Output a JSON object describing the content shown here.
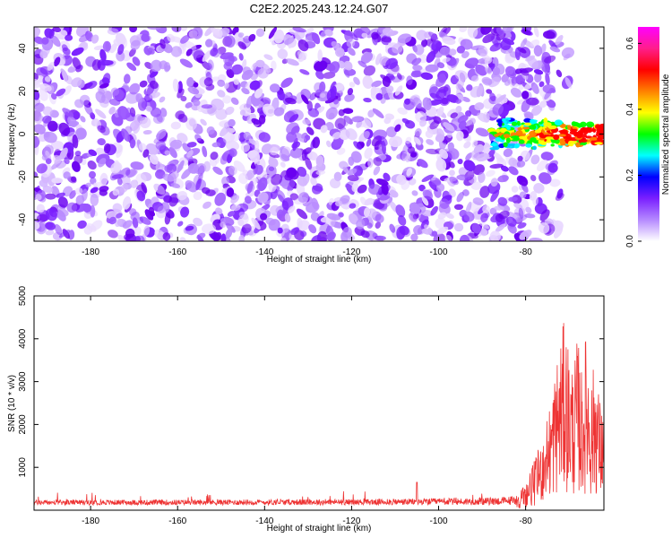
{
  "figure_title": "C2E2.2025.243.12.24.G07",
  "chart_data": [
    {
      "type": "heatmap",
      "xlabel": "Height of straight line (km)",
      "ylabel": "Frequency (Hz)",
      "xlim": [
        -193,
        -62
      ],
      "ylim": [
        -50,
        50
      ],
      "xticks": [
        -180,
        -160,
        -140,
        -120,
        -100,
        -80
      ],
      "yticks": [
        -40,
        -20,
        0,
        20,
        40
      ],
      "colorbar": {
        "label": "Normalized spectral amplitude",
        "range": [
          0.0,
          0.65
        ],
        "ticks": [
          0.0,
          0.2,
          0.4,
          0.6
        ],
        "colors": [
          "#ffffff",
          "#b589ff",
          "#7a1fff",
          "#0000ff",
          "#00ffff",
          "#00ff00",
          "#ffff00",
          "#ff8000",
          "#ff0000",
          "#ff1e8c"
        ]
      },
      "description_features": {
        "noise_region_x": [
          -193,
          -80
        ],
        "noise_amplitude_range": [
          0.0,
          0.15
        ],
        "signal_region_x": [
          -88,
          -62
        ],
        "signal_center_freq": 0,
        "signal_peak_amplitude": 0.6
      }
    },
    {
      "type": "line",
      "xlabel": "Height of straight line (km)",
      "ylabel": "SNR (10 * v/v)",
      "xlim": [
        -193,
        -62
      ],
      "ylim": [
        0,
        5000
      ],
      "xticks": [
        -180,
        -160,
        -140,
        -120,
        -100,
        -80
      ],
      "yticks": [
        1000,
        2000,
        3000,
        4000,
        5000
      ],
      "color": "#ee3333",
      "series": [
        {
          "x": [
            -193,
            -180,
            -160,
            -140,
            -120,
            -105,
            -100,
            -90,
            -84,
            -82,
            -80,
            -78,
            -76,
            -74,
            -73,
            -72,
            -71,
            -70,
            -69,
            -68,
            -67,
            -66,
            -65,
            -64,
            -63,
            -62
          ],
          "y": [
            200,
            200,
            210,
            220,
            230,
            250,
            260,
            280,
            330,
            400,
            600,
            1100,
            1700,
            2600,
            3300,
            3800,
            4300,
            3600,
            3200,
            3900,
            3000,
            4100,
            2800,
            3500,
            2500,
            2300
          ]
        }
      ],
      "spikes": [
        {
          "x": -105,
          "y": 650
        }
      ]
    }
  ]
}
